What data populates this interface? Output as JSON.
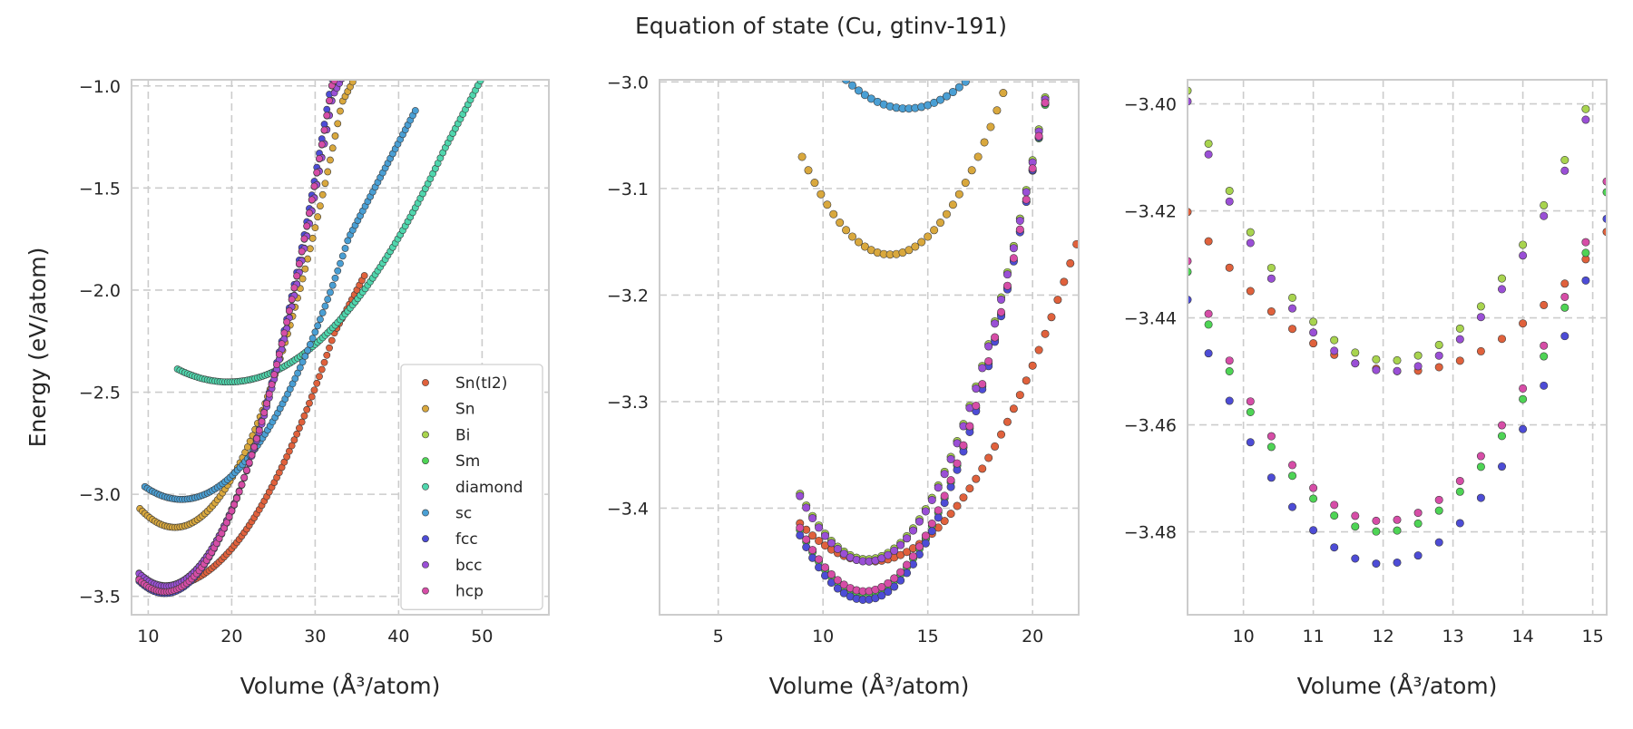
{
  "chart_data": {
    "type": "scatter",
    "title": "Equation of state (Cu, gtinv-191)",
    "ylabel": "Energy (eV/atom)",
    "xlabel": "Volume (Å³/atom)",
    "legend_entries": [
      "Sn(tI2)",
      "Sn",
      "Bi",
      "Sm",
      "diamond",
      "sc",
      "fcc",
      "bcc",
      "hcp"
    ],
    "legend_placement": "lower-right",
    "grid": true,
    "colors": {
      "Sn(tI2)": "#e0613c",
      "Sn": "#d9a83d",
      "Bi": "#a8d44e",
      "Sm": "#4ed455",
      "diamond": "#4fd6ad",
      "sc": "#4a9fd4",
      "fcc": "#4d4cd6",
      "bcc": "#9a4fd6",
      "hcp": "#d64da7"
    },
    "phases": {
      "Sn(tI2)": {
        "e0": -3.45,
        "v0": 12.3,
        "b": 0.0031,
        "vmin": 8.9,
        "vmax": 36.0
      },
      "Sn": {
        "e0": -3.162,
        "v0": 13.2,
        "b": 0.0052,
        "vmin": 9.0,
        "vmax": 40.0
      },
      "Bi": {
        "e0": -3.448,
        "v0": 12.1,
        "b": 0.006,
        "vmin": 8.9,
        "vmax": 36.0
      },
      "Sm": {
        "e0": -3.48,
        "v0": 12.0,
        "b": 0.0062,
        "vmin": 8.9,
        "vmax": 36.0
      },
      "diamond": {
        "e0": -2.45,
        "v0": 19.6,
        "b": 0.0017,
        "vmin": 13.5,
        "vmax": 57.5
      },
      "sc": {
        "e0": -3.025,
        "v0": 14.0,
        "b": 0.0032,
        "vmin": 9.6,
        "vmax": 42.0
      },
      "fcc": {
        "e0": -3.486,
        "v0": 12.0,
        "b": 0.0063,
        "vmin": 8.9,
        "vmax": 36.0
      },
      "bcc": {
        "e0": -3.45,
        "v0": 12.1,
        "b": 0.006,
        "vmin": 8.9,
        "vmax": 36.0
      },
      "hcp": {
        "e0": -3.478,
        "v0": 12.0,
        "b": 0.0062,
        "vmin": 8.9,
        "vmax": 36.0
      }
    },
    "panels": [
      {
        "xlim": [
          8,
          58
        ],
        "ylim": [
          -3.59,
          -0.97
        ],
        "xticks": [
          10,
          20,
          30,
          40,
          50
        ],
        "yticks": [
          -3.5,
          -3.0,
          -2.5,
          -2.0,
          -1.5,
          -1.0
        ],
        "xtick_labels": [
          "10",
          "20",
          "30",
          "40",
          "50"
        ],
        "ytick_labels": [
          "−3.5",
          "−3.0",
          "−2.5",
          "−2.0",
          "−1.5",
          "−1.0"
        ],
        "show_ylabel": true,
        "show_legend": true
      },
      {
        "xlim": [
          2.2,
          22.2
        ],
        "ylim": [
          -3.5,
          -2.998
        ],
        "xticks": [
          5,
          10,
          15,
          20
        ],
        "yticks": [
          -3.4,
          -3.3,
          -3.2,
          -3.1,
          -3.0
        ],
        "xtick_labels": [
          "5",
          "10",
          "15",
          "20"
        ],
        "ytick_labels": [
          "−3.4",
          "−3.3",
          "−3.2",
          "−3.1",
          "−3.0"
        ],
        "show_ylabel": false,
        "show_legend": false
      },
      {
        "xlim": [
          9.2,
          15.2
        ],
        "ylim": [
          -3.4955,
          -3.3955
        ],
        "xticks": [
          10,
          11,
          12,
          13,
          14,
          15
        ],
        "yticks": [
          -3.48,
          -3.46,
          -3.44,
          -3.42,
          -3.4
        ],
        "xtick_labels": [
          "10",
          "11",
          "12",
          "13",
          "14",
          "15"
        ],
        "ytick_labels": [
          "−3.48",
          "−3.46",
          "−3.44",
          "−3.42",
          "−3.40"
        ],
        "show_ylabel": false,
        "show_legend": false
      }
    ]
  }
}
